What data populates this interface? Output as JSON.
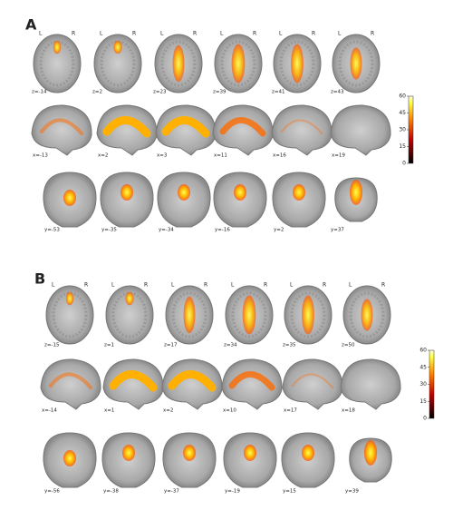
{
  "orientation": {
    "left": "L",
    "right": "R"
  },
  "panels": [
    {
      "label": "A",
      "axial": [
        "z=-14",
        "z=2",
        "z=23",
        "z=39",
        "z=41",
        "z=43"
      ],
      "sagittal": [
        "x=-13",
        "x=2",
        "x=3",
        "x=11",
        "x=16",
        "x=19"
      ],
      "coronal": [
        "y=-53",
        "y=-35",
        "y=-34",
        "y=-16",
        "y=2",
        "y=37"
      ],
      "colorbar": {
        "ticks": [
          60,
          45,
          30,
          15,
          0
        ]
      }
    },
    {
      "label": "B",
      "axial": [
        "z=-15",
        "z=1",
        "z=17",
        "z=34",
        "z=35",
        "z=50"
      ],
      "sagittal": [
        "x=-14",
        "x=1",
        "x=2",
        "x=10",
        "x=17",
        "x=18"
      ],
      "coronal": [
        "y=-56",
        "y=-38",
        "y=-37",
        "y=-19",
        "y=15",
        "y=39"
      ],
      "colorbar": {
        "ticks": [
          60,
          45,
          30,
          15,
          0
        ]
      }
    }
  ]
}
